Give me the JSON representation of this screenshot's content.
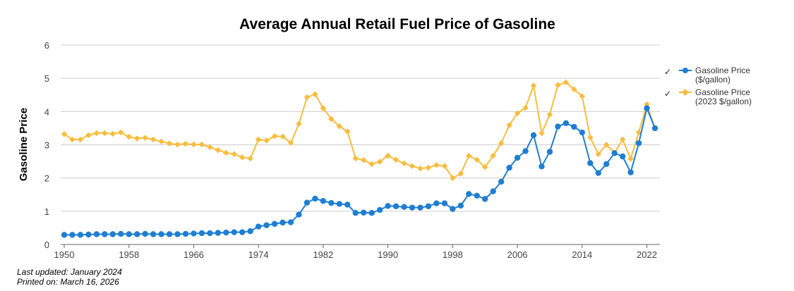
{
  "chart_data": {
    "type": "line",
    "title": "Average Annual Retail Fuel Price of Gasoline",
    "xlabel": "",
    "ylabel": "Gasoline Price",
    "ylim": [
      0,
      6
    ],
    "yticks": [
      "0",
      "1",
      "2",
      "3",
      "4",
      "5",
      "6"
    ],
    "xticks": [
      "1950",
      "1958",
      "1966",
      "1974",
      "1982",
      "1990",
      "1998",
      "2006",
      "2014",
      "2022"
    ],
    "grid": true,
    "legend_position": "right",
    "x": [
      1950,
      1951,
      1952,
      1953,
      1954,
      1955,
      1956,
      1957,
      1958,
      1959,
      1960,
      1961,
      1962,
      1963,
      1964,
      1965,
      1966,
      1967,
      1968,
      1969,
      1970,
      1971,
      1972,
      1973,
      1974,
      1975,
      1976,
      1977,
      1978,
      1979,
      1980,
      1981,
      1982,
      1983,
      1984,
      1985,
      1986,
      1987,
      1988,
      1989,
      1990,
      1991,
      1992,
      1993,
      1994,
      1995,
      1996,
      1997,
      1998,
      1999,
      2000,
      2001,
      2002,
      2003,
      2004,
      2005,
      2006,
      2007,
      2008,
      2009,
      2010,
      2011,
      2012,
      2013,
      2014,
      2015,
      2016,
      2017,
      2018,
      2019,
      2020,
      2021,
      2022,
      2023
    ],
    "series": [
      {
        "name": "Gasoline Price ($/gallon)",
        "legend_line1": "Gasoline Price",
        "legend_line2": "($/gallon)",
        "color": "#1f7ed1",
        "values": [
          0.29,
          0.29,
          0.29,
          0.3,
          0.31,
          0.31,
          0.31,
          0.32,
          0.31,
          0.31,
          0.32,
          0.31,
          0.31,
          0.31,
          0.31,
          0.32,
          0.33,
          0.34,
          0.34,
          0.35,
          0.36,
          0.37,
          0.37,
          0.4,
          0.54,
          0.58,
          0.62,
          0.66,
          0.67,
          0.9,
          1.26,
          1.38,
          1.31,
          1.25,
          1.22,
          1.2,
          0.95,
          0.96,
          0.95,
          1.04,
          1.16,
          1.15,
          1.13,
          1.11,
          1.11,
          1.15,
          1.24,
          1.24,
          1.07,
          1.17,
          1.52,
          1.47,
          1.37,
          1.6,
          1.89,
          2.31,
          2.61,
          2.81,
          3.29,
          2.35,
          2.79,
          3.55,
          3.65,
          3.54,
          3.37,
          2.45,
          2.15,
          2.42,
          2.75,
          2.65,
          2.17,
          3.05,
          4.1,
          3.5
        ]
      },
      {
        "name": "Gasoline Price (2023 $/gallon)",
        "legend_line1": "Gasoline Price",
        "legend_line2": "(2023 $/gallon)",
        "color": "#f9bc3f",
        "values": [
          3.32,
          3.16,
          3.16,
          3.29,
          3.35,
          3.35,
          3.33,
          3.37,
          3.24,
          3.19,
          3.21,
          3.16,
          3.1,
          3.04,
          3.01,
          3.03,
          3.01,
          3.01,
          2.93,
          2.84,
          2.76,
          2.72,
          2.62,
          2.59,
          3.16,
          3.13,
          3.26,
          3.25,
          3.06,
          3.63,
          4.43,
          4.52,
          4.1,
          3.78,
          3.56,
          3.4,
          2.59,
          2.54,
          2.42,
          2.49,
          2.67,
          2.55,
          2.44,
          2.36,
          2.29,
          2.31,
          2.39,
          2.36,
          2.0,
          2.13,
          2.67,
          2.55,
          2.33,
          2.67,
          3.05,
          3.59,
          3.95,
          4.11,
          4.78,
          3.35,
          3.91,
          4.8,
          4.88,
          4.67,
          4.46,
          3.22,
          2.72,
          3.0,
          2.76,
          3.16,
          2.58,
          3.37,
          4.22,
          3.5
        ]
      }
    ]
  },
  "footer": {
    "last_updated": "Last updated: January 2024",
    "printed_on": "Printed on: March 16, 2026"
  },
  "legend": {
    "check_mark": "✓"
  }
}
